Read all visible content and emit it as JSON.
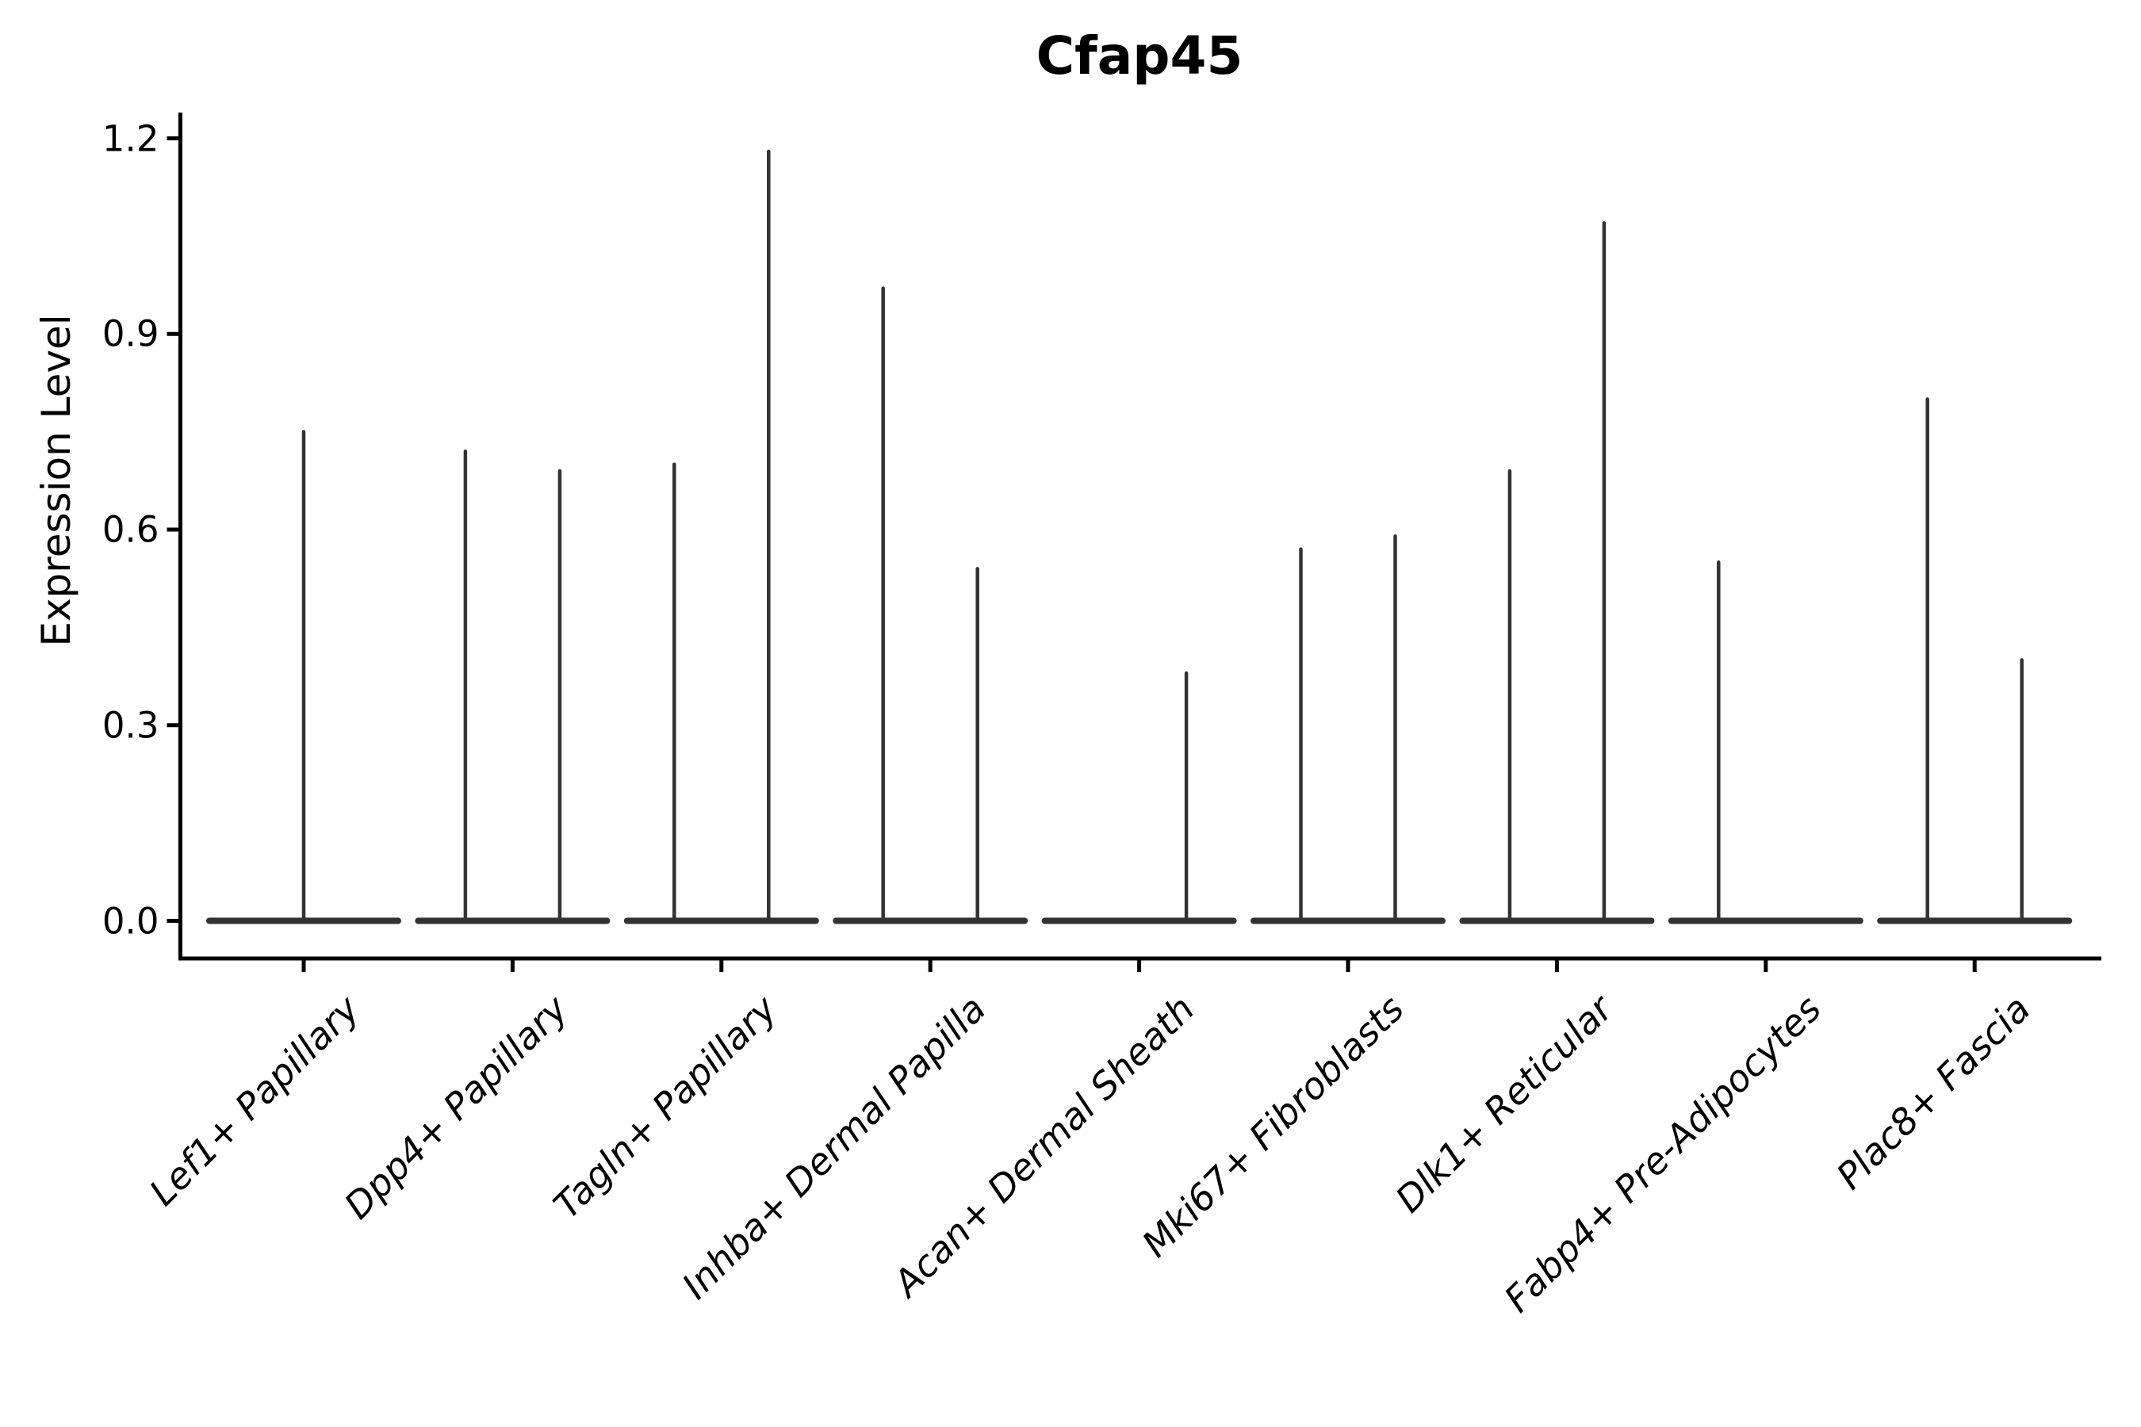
{
  "figure": {
    "background": "#ffffff",
    "axis_color": "#000000",
    "violin_color": "#333333"
  },
  "chart_data": {
    "type": "violin",
    "title": "Cfap45",
    "xlabel": "",
    "ylabel": "Expression Level",
    "ylim": [
      -0.06,
      1.24
    ],
    "grid": false,
    "legend": null,
    "yticks": [
      0.0,
      0.3,
      0.6,
      0.9,
      1.2
    ],
    "ytick_labels": [
      "0.0",
      "0.3",
      "0.6",
      "0.9",
      "1.2"
    ],
    "categories": [
      "Lef1+ Papillary",
      "Dpp4+ Papillary",
      "Tagln+ Papillary",
      "Inhba+ Dermal Papilla",
      "Acan+ Dermal Sheath",
      "Mki67+ Fibroblasts",
      "Dlk1+ Reticular",
      "Fabp4+ Pre-Adipocytes",
      "Plac8+ Fascia"
    ],
    "violins": [
      {
        "label": "Lef1+ Papillary",
        "base_max": 0.0,
        "spikes": [
          {
            "slot": 0,
            "max": 0.75
          }
        ]
      },
      {
        "label": "Dpp4+ Papillary",
        "base_max": 0.0,
        "spikes": [
          {
            "slot": -1,
            "max": 0.72
          },
          {
            "slot": 1,
            "max": 0.69
          }
        ]
      },
      {
        "label": "Tagln+ Papillary",
        "base_max": 0.0,
        "spikes": [
          {
            "slot": -1,
            "max": 0.7
          },
          {
            "slot": 1,
            "max": 1.18
          }
        ]
      },
      {
        "label": "Inhba+ Dermal Papilla",
        "base_max": 0.0,
        "spikes": [
          {
            "slot": -1,
            "max": 0.97
          },
          {
            "slot": 1,
            "max": 0.54
          }
        ]
      },
      {
        "label": "Acan+ Dermal Sheath",
        "base_max": 0.0,
        "spikes": [
          {
            "slot": 1,
            "max": 0.38
          }
        ]
      },
      {
        "label": "Mki67+ Fibroblasts",
        "base_max": 0.0,
        "spikes": [
          {
            "slot": -1,
            "max": 0.57
          },
          {
            "slot": 1,
            "max": 0.59
          }
        ]
      },
      {
        "label": "Dlk1+ Reticular",
        "base_max": 0.0,
        "spikes": [
          {
            "slot": -1,
            "max": 0.69
          },
          {
            "slot": 1,
            "max": 1.07
          }
        ]
      },
      {
        "label": "Fabp4+ Pre-Adipocytes",
        "base_max": 0.0,
        "spikes": [
          {
            "slot": -1,
            "max": 0.55
          }
        ]
      },
      {
        "label": "Plac8+ Fascia",
        "base_max": 0.0,
        "spikes": [
          {
            "slot": -1,
            "max": 0.8
          },
          {
            "slot": 1,
            "max": 0.4
          }
        ]
      }
    ]
  }
}
